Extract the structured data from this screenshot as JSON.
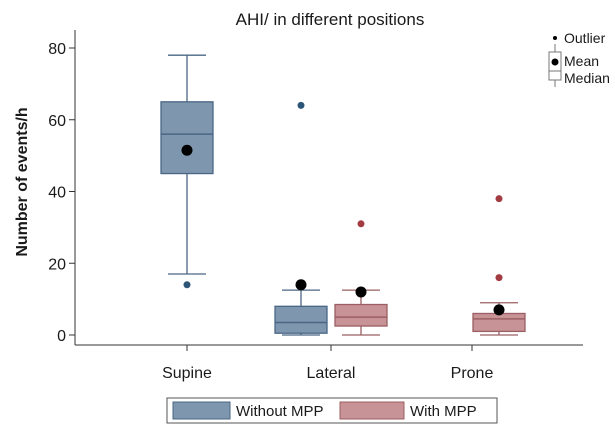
{
  "chart_data": {
    "type": "box",
    "title": "AHI/ in different positions",
    "xlabel": "",
    "ylabel": "Number of events/h",
    "ylim": [
      -2,
      84
    ],
    "yticks": [
      0,
      20,
      40,
      60,
      80
    ],
    "categories": [
      "Supine",
      "Lateral",
      "Prone"
    ],
    "grid": false,
    "legend_position": "bottom",
    "key": {
      "position": "top-right",
      "labels": {
        "outlier": "Outlier",
        "mean": "Mean",
        "median": "Median"
      }
    },
    "series": [
      {
        "name": "Without MPP",
        "fill": "#7f97ae",
        "stroke": "#4a6685",
        "outlier_color": "#2c5577",
        "boxes": [
          {
            "category": "Supine",
            "whisker_low": 17,
            "q1": 45,
            "median": 56,
            "q3": 65,
            "whisker_high": 78,
            "mean": 51.5,
            "outliers": [
              14
            ]
          },
          {
            "category": "Lateral",
            "whisker_low": 0,
            "q1": 0.5,
            "median": 3.5,
            "q3": 8,
            "whisker_high": 12.5,
            "mean": 14,
            "outliers": [
              64
            ]
          }
        ]
      },
      {
        "name": "With MPP",
        "fill": "#c89396",
        "stroke": "#9b5f63",
        "outlier_color": "#a33b43",
        "boxes": [
          {
            "category": "Lateral",
            "whisker_low": 0,
            "q1": 2.5,
            "median": 5,
            "q3": 8.5,
            "whisker_high": 12.5,
            "mean": 12,
            "outliers": [
              31
            ]
          },
          {
            "category": "Prone",
            "whisker_low": 0,
            "q1": 1,
            "median": 4.5,
            "q3": 6,
            "whisker_high": 9,
            "mean": 7,
            "outliers": [
              16,
              38
            ]
          }
        ]
      }
    ]
  }
}
